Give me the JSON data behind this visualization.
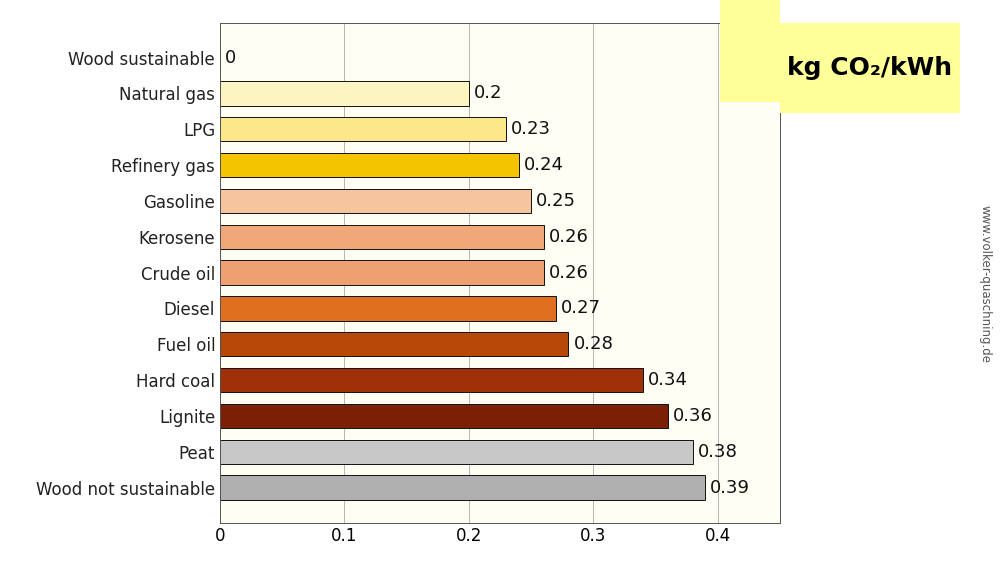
{
  "categories": [
    "Wood sustainable",
    "Natural gas",
    "LPG",
    "Refinery gas",
    "Gasoline",
    "Kerosene",
    "Crude oil",
    "Diesel",
    "Fuel oil",
    "Hard coal",
    "Lignite",
    "Peat",
    "Wood not sustainable"
  ],
  "values": [
    0,
    0.2,
    0.23,
    0.24,
    0.25,
    0.26,
    0.26,
    0.27,
    0.28,
    0.34,
    0.36,
    0.38,
    0.39
  ],
  "bar_colors": [
    "#ffffff",
    "#fdf5c0",
    "#fce88a",
    "#f5c400",
    "#f5c5a0",
    "#f0a878",
    "#eda070",
    "#e07020",
    "#b84808",
    "#a03008",
    "#7a2005",
    "#c8c8c8",
    "#b0b0b0"
  ],
  "bar_edgecolor": "#111111",
  "value_labels": [
    "0",
    "0.2",
    "0.23",
    "0.24",
    "0.25",
    "0.26",
    "0.26",
    "0.27",
    "0.28",
    "0.34",
    "0.36",
    "0.38",
    "0.39"
  ],
  "xlim": [
    0,
    0.45
  ],
  "xticks": [
    0,
    0.1,
    0.2,
    0.3,
    0.4
  ],
  "xtick_labels": [
    "0",
    "0.1",
    "0.2",
    "0.3",
    "0.4"
  ],
  "title": "kg CO₂/kWh",
  "outer_bg": "#ffffff",
  "axes_bg": "#fffef5",
  "right_panel_bg": "#ffffe8",
  "right_panel_bright": "#ffff99",
  "label_fontsize": 12,
  "value_fontsize": 13,
  "tick_fontsize": 12,
  "title_fontsize": 18,
  "watermark": "www.volker-quaschning.de",
  "bar_height": 0.68
}
